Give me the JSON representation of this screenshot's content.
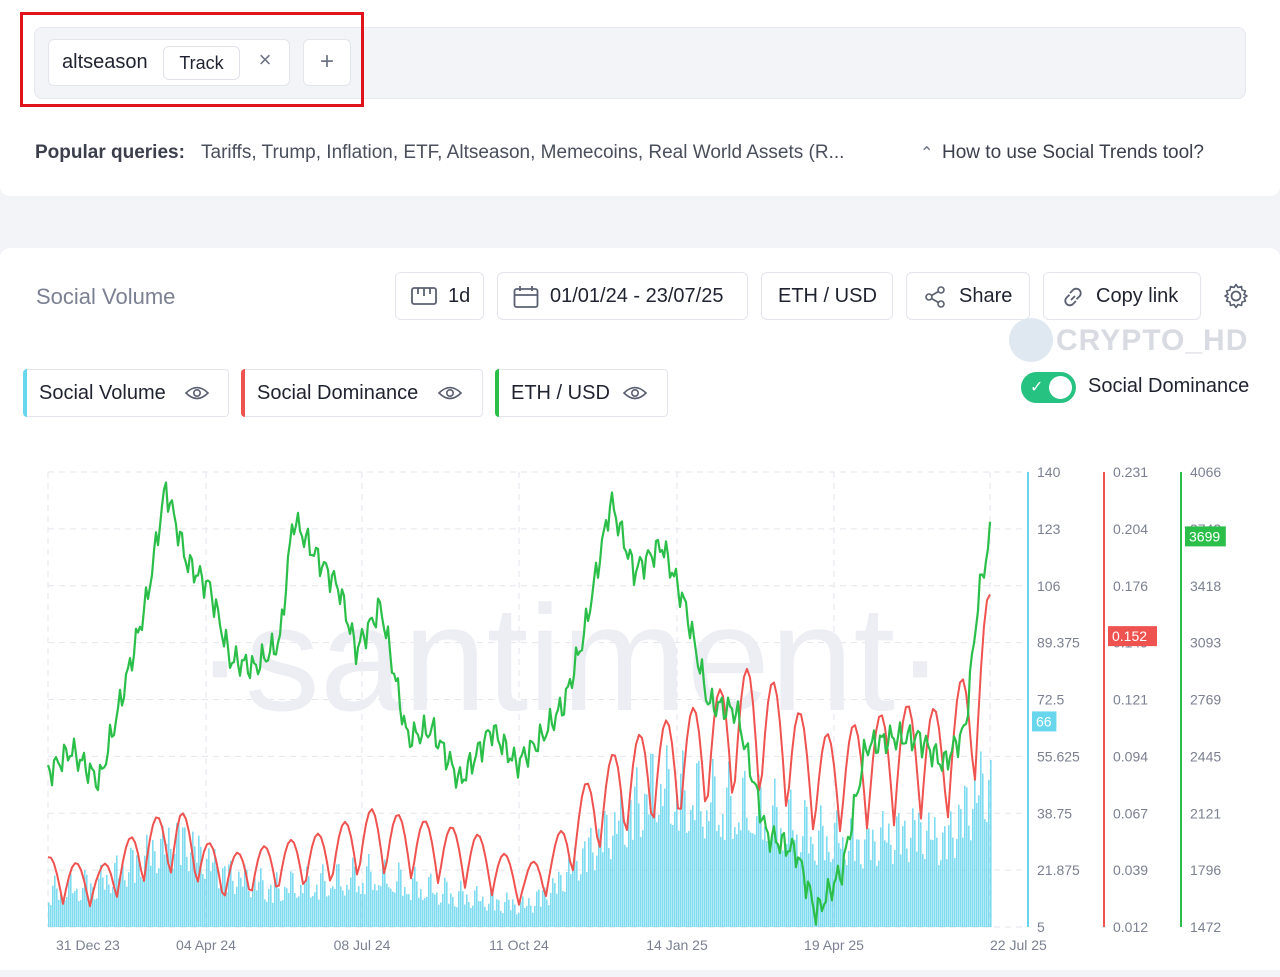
{
  "query": {
    "term": "altseason",
    "track_label": "Track",
    "close_icon": "close-icon",
    "add_icon": "plus-icon"
  },
  "popular": {
    "label": "Popular queries:",
    "items": "Tariffs, Trump, Inflation, ETF, Altseason, Memecoins, Real World Assets (R...",
    "help": "How to use Social Trends tool?"
  },
  "toolbar": {
    "title": "Social Volume",
    "interval": "1d",
    "date_range": "01/01/24 - 23/07/25",
    "pair": "ETH / USD",
    "share": "Share",
    "copy_link": "Copy link"
  },
  "watermark": {
    "channel": "CRYPTO_HD",
    "brand": "·santiment·"
  },
  "legend": [
    {
      "label": "Social Volume",
      "color": "#68d6ed"
    },
    {
      "label": "Social Dominance",
      "color": "#ef5350"
    },
    {
      "label": "ETH / USD",
      "color": "#2bbf4a"
    }
  ],
  "toggle": {
    "label": "Social Dominance",
    "on": true
  },
  "chart_data": {
    "type": "line",
    "x_tick_labels": [
      "31 Dec 23",
      "04 Apr 24",
      "08 Jul 24",
      "11 Oct 24",
      "14 Jan 25",
      "19 Apr 25",
      "22 Jul 25"
    ],
    "x_range": [
      "2024-01-01",
      "2025-07-23"
    ],
    "axes": [
      {
        "series": "Social Volume",
        "color": "#68d6ed",
        "range": [
          5,
          140
        ],
        "ticks": [
          "140",
          "123",
          "106",
          "89.375",
          "72.5",
          "55.625",
          "38.75",
          "21.875",
          "5"
        ],
        "current": "66"
      },
      {
        "series": "Social Dominance",
        "color": "#ef5350",
        "range": [
          0.012,
          0.231
        ],
        "ticks": [
          "0.231",
          "0.204",
          "0.176",
          "0.149",
          "0.121",
          "0.094",
          "0.067",
          "0.039",
          "0.012"
        ],
        "current": "0.152"
      },
      {
        "series": "ETH / USD",
        "color": "#2bbf4a",
        "range": [
          1472,
          4066
        ],
        "ticks": [
          "4066",
          "3743",
          "3418",
          "3093",
          "2769",
          "2445",
          "2121",
          "1796",
          "1472"
        ],
        "current": "3699"
      }
    ],
    "series": [
      {
        "name": "ETH / USD",
        "type": "line",
        "x": [
          "2024-01-01",
          "2024-01-15",
          "2024-02-01",
          "2024-02-15",
          "2024-03-01",
          "2024-03-12",
          "2024-03-25",
          "2024-04-08",
          "2024-04-20",
          "2024-05-05",
          "2024-05-20",
          "2024-05-28",
          "2024-06-10",
          "2024-06-25",
          "2024-07-05",
          "2024-07-20",
          "2024-08-05",
          "2024-08-20",
          "2024-09-06",
          "2024-09-25",
          "2024-10-10",
          "2024-10-25",
          "2024-11-08",
          "2024-11-20",
          "2024-12-06",
          "2024-12-20",
          "2025-01-06",
          "2025-01-20",
          "2025-02-03",
          "2025-02-20",
          "2025-03-10",
          "2025-03-28",
          "2025-04-09",
          "2025-04-25",
          "2025-05-09",
          "2025-05-25",
          "2025-06-10",
          "2025-06-25",
          "2025-07-08",
          "2025-07-16",
          "2025-07-23"
        ],
        "values": [
          2350,
          2480,
          2300,
          2800,
          3350,
          3980,
          3550,
          3400,
          3000,
          2950,
          3100,
          3800,
          3600,
          3400,
          3050,
          3300,
          2550,
          2600,
          2300,
          2600,
          2400,
          2550,
          2750,
          3150,
          3900,
          3500,
          3650,
          3300,
          2750,
          2700,
          2000,
          1900,
          1550,
          1800,
          2500,
          2550,
          2550,
          2400,
          2600,
          3350,
          3699
        ]
      },
      {
        "name": "Social Dominance",
        "type": "line",
        "x": [
          "2024-01-01",
          "2024-02-01",
          "2024-03-01",
          "2024-03-20",
          "2024-04-15",
          "2024-05-15",
          "2024-06-15",
          "2024-07-15",
          "2024-08-15",
          "2024-09-15",
          "2024-10-15",
          "2024-11-01",
          "2024-11-20",
          "2024-12-10",
          "2025-01-01",
          "2025-01-20",
          "2025-02-10",
          "2025-03-01",
          "2025-03-20",
          "2025-04-10",
          "2025-05-01",
          "2025-05-20",
          "2025-06-10",
          "2025-06-25",
          "2025-07-10",
          "2025-07-23"
        ],
        "values": [
          0.04,
          0.035,
          0.055,
          0.06,
          0.04,
          0.045,
          0.05,
          0.06,
          0.055,
          0.05,
          0.035,
          0.045,
          0.07,
          0.085,
          0.095,
          0.1,
          0.11,
          0.12,
          0.11,
          0.09,
          0.095,
          0.1,
          0.105,
          0.1,
          0.12,
          0.152
        ]
      },
      {
        "name": "Social Volume",
        "type": "bar",
        "x": [
          "2024-01-01",
          "2024-02-01",
          "2024-03-01",
          "2024-03-20",
          "2024-04-15",
          "2024-05-15",
          "2024-06-15",
          "2024-07-15",
          "2024-08-15",
          "2024-09-15",
          "2024-10-15",
          "2024-11-01",
          "2024-11-20",
          "2024-12-10",
          "2025-01-01",
          "2025-01-20",
          "2025-02-10",
          "2025-03-01",
          "2025-03-20",
          "2025-04-10",
          "2025-05-01",
          "2025-05-20",
          "2025-06-10",
          "2025-06-25",
          "2025-07-10",
          "2025-07-23"
        ],
        "values": [
          20,
          24,
          35,
          42,
          28,
          22,
          24,
          27,
          22,
          18,
          15,
          22,
          36,
          48,
          62,
          58,
          55,
          52,
          48,
          42,
          40,
          42,
          45,
          40,
          55,
          66
        ]
      }
    ]
  }
}
